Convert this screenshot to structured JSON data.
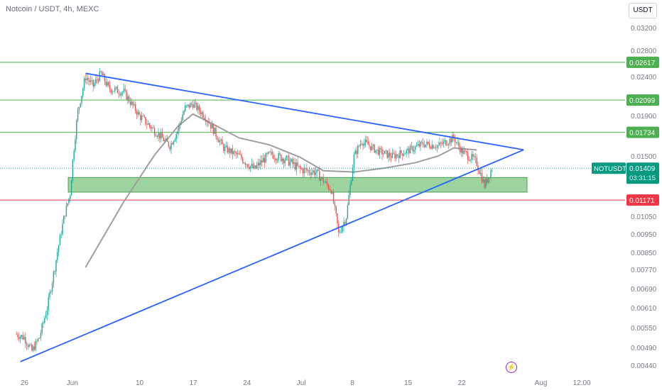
{
  "header": {
    "symbol_title": "Notcoin / USDT, 4h, MEXC",
    "currency_button": "USDT"
  },
  "colors": {
    "up": "#26a69a",
    "down": "#ef5350",
    "trendline": "#2962ff",
    "level_green": "#4caf50",
    "level_red": "#f23645",
    "ma": "#9e9e9e",
    "zone_fill": "#4caf50",
    "price_tag": "#089981"
  },
  "icons": {
    "replay": "lightning-icon"
  },
  "chart_data": {
    "type": "candlestick",
    "title": "Notcoin / USDT, 4h, MEXC",
    "price_axis_ticks": [
      "0.03200",
      "0.02800",
      "0.02400",
      "0.01900",
      "0.01500",
      "0.01050",
      "0.00950",
      "0.00850",
      "0.00770",
      "0.00690",
      "0.00610",
      "0.00550",
      "0.00490",
      "0.00440"
    ],
    "time_axis_ticks": [
      "26",
      "Jun",
      "10",
      "17",
      "24",
      "Jul",
      "8",
      "15",
      "22",
      "Aug",
      "12:00"
    ],
    "horizontal_levels": [
      {
        "value": "0.02617",
        "color": "green"
      },
      {
        "value": "0.02099",
        "color": "green"
      },
      {
        "value": "0.01734",
        "color": "green"
      },
      {
        "value": "0.01171",
        "color": "red"
      }
    ],
    "current_price": {
      "symbol": "NOTUSDT",
      "value": "0.01409",
      "countdown": "03:31:15"
    },
    "support_zone": {
      "top": 0.0134,
      "bottom": 0.0123
    },
    "triangle": {
      "upper_line": [
        {
          "date": "Jun 3",
          "price": 0.0245
        },
        {
          "date": "Jul 29",
          "price": 0.0154
        }
      ],
      "lower_line": [
        {
          "date": "May 27",
          "price": 0.0047
        },
        {
          "date": "Jul 29",
          "price": 0.0154
        }
      ]
    },
    "moving_average": [
      {
        "date": "Jun 3",
        "price": 0.0078
      },
      {
        "date": "Jun 8",
        "price": 0.0116
      },
      {
        "date": "Jun 12",
        "price": 0.0151
      },
      {
        "date": "Jun 15",
        "price": 0.0179
      },
      {
        "date": "Jun 17",
        "price": 0.0192
      },
      {
        "date": "Jun 19",
        "price": 0.0184
      },
      {
        "date": "Jun 23",
        "price": 0.0168
      },
      {
        "date": "Jun 27",
        "price": 0.0161
      },
      {
        "date": "Jul 1",
        "price": 0.0149
      },
      {
        "date": "Jul 4",
        "price": 0.0139
      },
      {
        "date": "Jul 8",
        "price": 0.0138
      },
      {
        "date": "Jul 12",
        "price": 0.0141
      },
      {
        "date": "Jul 16",
        "price": 0.0145
      },
      {
        "date": "Jul 19",
        "price": 0.015
      },
      {
        "date": "Jul 21",
        "price": 0.0158
      },
      {
        "date": "Jul 24",
        "price": 0.0156
      }
    ],
    "price_path": [
      {
        "date": "May 25",
        "price": 0.0053
      },
      {
        "date": "May 26",
        "price": 0.0052
      },
      {
        "date": "May 27",
        "price": 0.0048
      },
      {
        "date": "May 28",
        "price": 0.0052
      },
      {
        "date": "May 29",
        "price": 0.0061
      },
      {
        "date": "May 30",
        "price": 0.0078
      },
      {
        "date": "May 31",
        "price": 0.01
      },
      {
        "date": "Jun 1",
        "price": 0.0122
      },
      {
        "date": "Jun 2",
        "price": 0.0195
      },
      {
        "date": "Jun 3",
        "price": 0.024
      },
      {
        "date": "Jun 4",
        "price": 0.0228
      },
      {
        "date": "Jun 5",
        "price": 0.0245
      },
      {
        "date": "Jun 6",
        "price": 0.0225
      },
      {
        "date": "Jun 8",
        "price": 0.022
      },
      {
        "date": "Jun 10",
        "price": 0.019
      },
      {
        "date": "Jun 12",
        "price": 0.0175
      },
      {
        "date": "Jun 14",
        "price": 0.016
      },
      {
        "date": "Jun 15",
        "price": 0.0175
      },
      {
        "date": "Jun 16",
        "price": 0.02
      },
      {
        "date": "Jun 17",
        "price": 0.0205
      },
      {
        "date": "Jun 19",
        "price": 0.0185
      },
      {
        "date": "Jun 21",
        "price": 0.0158
      },
      {
        "date": "Jun 23",
        "price": 0.015
      },
      {
        "date": "Jun 25",
        "price": 0.014
      },
      {
        "date": "Jun 27",
        "price": 0.0152
      },
      {
        "date": "Jun 29",
        "price": 0.0148
      },
      {
        "date": "Jul 1",
        "price": 0.014
      },
      {
        "date": "Jul 3",
        "price": 0.0138
      },
      {
        "date": "Jul 5",
        "price": 0.0125
      },
      {
        "date": "Jul 6",
        "price": 0.0095
      },
      {
        "date": "Jul 7",
        "price": 0.0105
      },
      {
        "date": "Jul 8",
        "price": 0.015
      },
      {
        "date": "Jul 9",
        "price": 0.0165
      },
      {
        "date": "Jul 11",
        "price": 0.0155
      },
      {
        "date": "Jul 13",
        "price": 0.015
      },
      {
        "date": "Jul 15",
        "price": 0.0155
      },
      {
        "date": "Jul 17",
        "price": 0.0162
      },
      {
        "date": "Jul 19",
        "price": 0.016
      },
      {
        "date": "Jul 21",
        "price": 0.0168
      },
      {
        "date": "Jul 22",
        "price": 0.0155
      },
      {
        "date": "Jul 24",
        "price": 0.0145
      },
      {
        "date": "Jul 25",
        "price": 0.0128
      },
      {
        "date": "Jul 26",
        "price": 0.0141
      }
    ]
  }
}
